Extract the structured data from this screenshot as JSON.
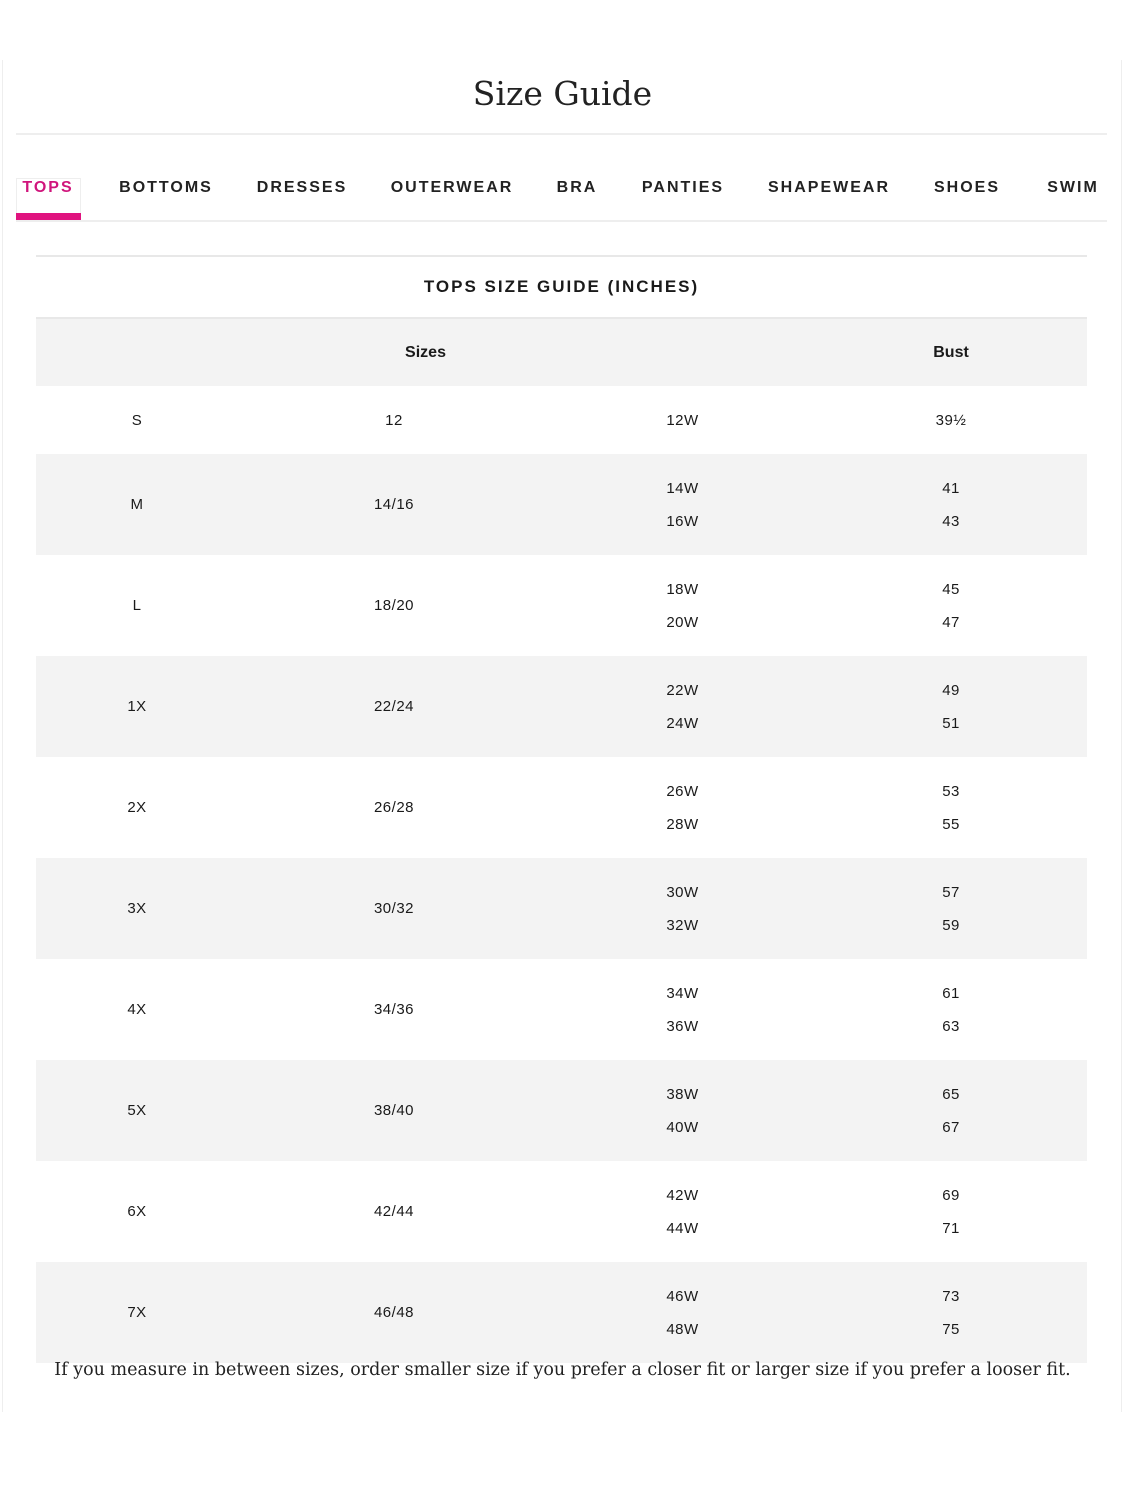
{
  "title": "Size Guide",
  "accent_color": "#e0137f",
  "tabs": [
    {
      "label": "TOPS",
      "active": true
    },
    {
      "label": "BOTTOMS"
    },
    {
      "label": "DRESSES"
    },
    {
      "label": "OUTERWEAR"
    },
    {
      "label": "BRA"
    },
    {
      "label": "PANTIES"
    },
    {
      "label": "SHAPEWEAR"
    },
    {
      "label": "SHOES"
    },
    {
      "label": "SWIM"
    }
  ],
  "table": {
    "caption": "TOPS SIZE GUIDE (INCHES)",
    "headers": {
      "sizes": "Sizes",
      "bust": "Bust"
    },
    "rows": [
      {
        "size": "S",
        "numeric": "12",
        "w": [
          "12W"
        ],
        "bust": [
          "39½"
        ]
      },
      {
        "size": "M",
        "numeric": "14/16",
        "w": [
          "14W",
          "16W"
        ],
        "bust": [
          "41",
          "43"
        ]
      },
      {
        "size": "L",
        "numeric": "18/20",
        "w": [
          "18W",
          "20W"
        ],
        "bust": [
          "45",
          "47"
        ]
      },
      {
        "size": "1X",
        "numeric": "22/24",
        "w": [
          "22W",
          "24W"
        ],
        "bust": [
          "49",
          "51"
        ]
      },
      {
        "size": "2X",
        "numeric": "26/28",
        "w": [
          "26W",
          "28W"
        ],
        "bust": [
          "53",
          "55"
        ]
      },
      {
        "size": "3X",
        "numeric": "30/32",
        "w": [
          "30W",
          "32W"
        ],
        "bust": [
          "57",
          "59"
        ]
      },
      {
        "size": "4X",
        "numeric": "34/36",
        "w": [
          "34W",
          "36W"
        ],
        "bust": [
          "61",
          "63"
        ]
      },
      {
        "size": "5X",
        "numeric": "38/40",
        "w": [
          "38W",
          "40W"
        ],
        "bust": [
          "65",
          "67"
        ]
      },
      {
        "size": "6X",
        "numeric": "42/44",
        "w": [
          "42W",
          "44W"
        ],
        "bust": [
          "69",
          "71"
        ]
      },
      {
        "size": "7X",
        "numeric": "46/48",
        "w": [
          "46W",
          "48W"
        ],
        "bust": [
          "73",
          "75"
        ]
      }
    ]
  },
  "note": "If you measure in between sizes, order smaller size if you prefer a closer fit or larger size if you prefer a looser fit."
}
